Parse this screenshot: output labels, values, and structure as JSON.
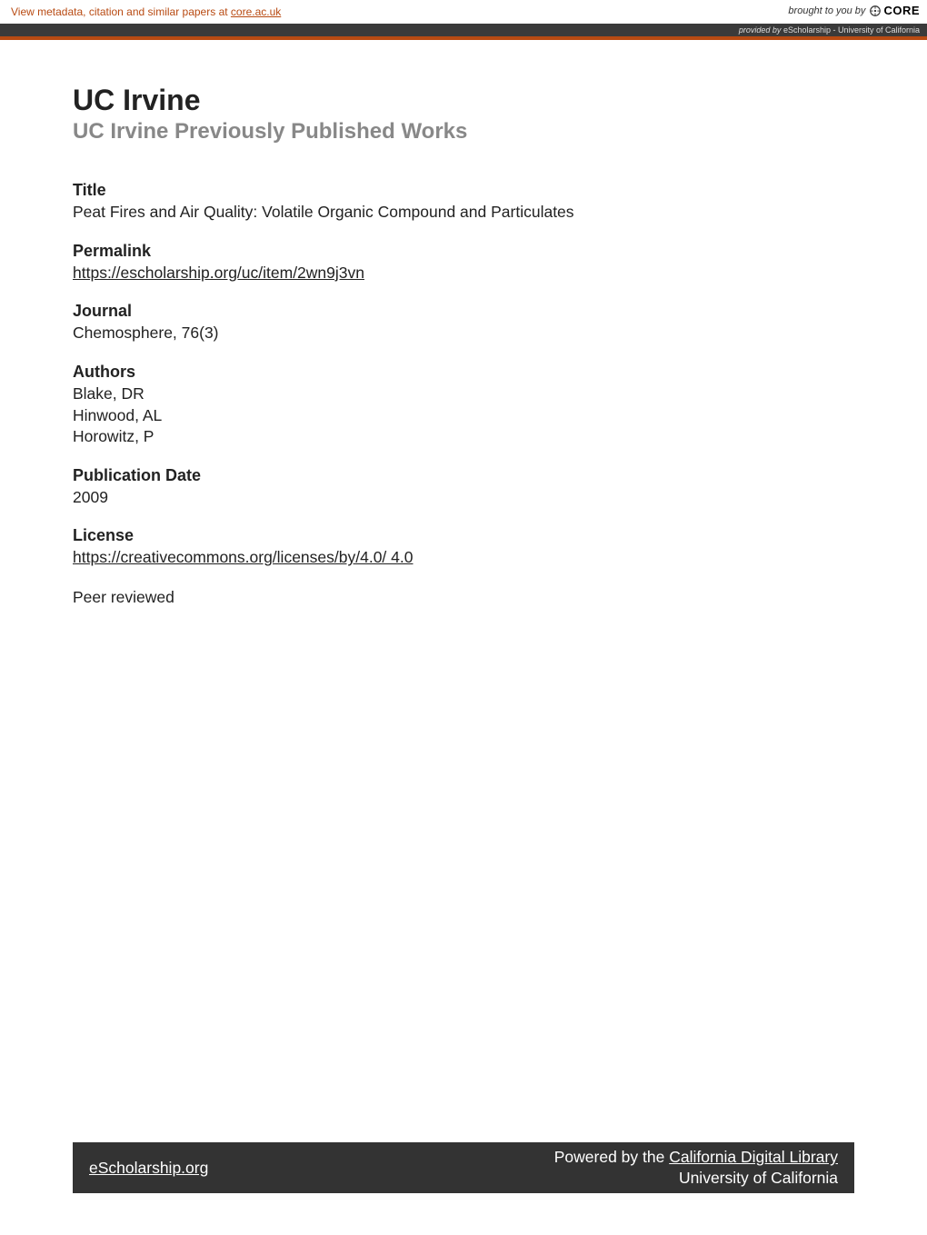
{
  "banner": {
    "left_text_prefix": "View metadata, citation and similar papers at ",
    "left_link_text": "core.ac.uk",
    "right_prefix": "brought to you by ",
    "core_label": "CORE",
    "provided_prefix": "provided by",
    "provided_source": " eScholarship - University of California"
  },
  "colors": {
    "accent": "#b84a12",
    "dark_bar": "#3a3a3a",
    "footer_bg": "#333333",
    "subheading": "#888888"
  },
  "header": {
    "institution": "UC Irvine",
    "collection": "UC Irvine Previously Published Works"
  },
  "fields": [
    {
      "label": "Title",
      "type": "text",
      "value": "Peat Fires and Air Quality: Volatile Organic Compound and Particulates"
    },
    {
      "label": "Permalink",
      "type": "link",
      "value": "https://escholarship.org/uc/item/2wn9j3vn"
    },
    {
      "label": "Journal",
      "type": "text",
      "value": "Chemosphere, 76(3)"
    },
    {
      "label": "Authors",
      "type": "lines",
      "lines": [
        "Blake, DR",
        "Hinwood, AL",
        "Horowitz, P"
      ]
    },
    {
      "label": "Publication Date",
      "type": "text",
      "value": "2009"
    },
    {
      "label": "License",
      "type": "link_with_suffix",
      "value": "https://creativecommons.org/licenses/by/4.0/",
      "suffix": " 4.0"
    }
  ],
  "peer_reviewed": "Peer reviewed",
  "footer": {
    "left_link": "eScholarship.org",
    "right_prefix": "Powered by the ",
    "right_link": "California Digital Library",
    "right_line2": "University of California"
  }
}
